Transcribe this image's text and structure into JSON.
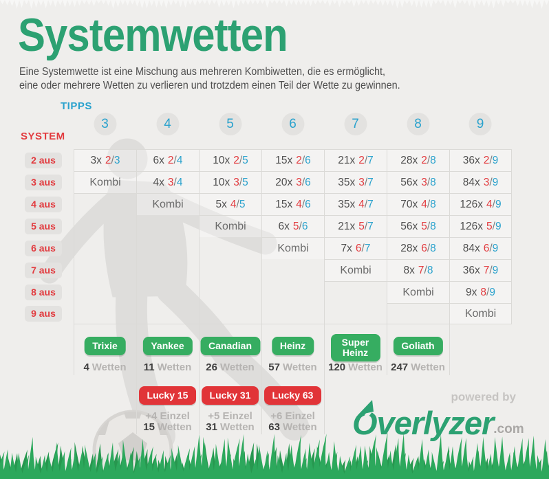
{
  "page": {
    "title": "Systemwetten",
    "subtitle_line1": "Eine Systemwette ist eine Mischung aus mehreren Kombiwetten, die es ermöglicht,",
    "subtitle_line2": "eine oder mehrere Wetten zu verlieren und trotzdem einen Teil der Wette zu gewinnen."
  },
  "chart_data": {
    "type": "table",
    "title": "Systemwetten",
    "columns_label": "TIPPS",
    "rows_label": "SYSTEM",
    "columns": [
      "3",
      "4",
      "5",
      "6",
      "7",
      "8",
      "9"
    ],
    "rows": [
      "2 aus",
      "3 aus",
      "4 aus",
      "5 aus",
      "6 aus",
      "7 aus",
      "8 aus",
      "9 aus"
    ],
    "kombi_label": "Kombi",
    "separator": "/",
    "matrix": [
      [
        {
          "count": "3x",
          "pick": "2",
          "of": "3"
        },
        {
          "count": "6x",
          "pick": "2",
          "of": "4"
        },
        {
          "count": "10x",
          "pick": "2",
          "of": "5"
        },
        {
          "count": "15x",
          "pick": "2",
          "of": "6"
        },
        {
          "count": "21x",
          "pick": "2",
          "of": "7"
        },
        {
          "count": "28x",
          "pick": "2",
          "of": "8"
        },
        {
          "count": "36x",
          "pick": "2",
          "of": "9"
        }
      ],
      [
        {
          "kombi": true
        },
        {
          "count": "4x",
          "pick": "3",
          "of": "4"
        },
        {
          "count": "10x",
          "pick": "3",
          "of": "5"
        },
        {
          "count": "20x",
          "pick": "3",
          "of": "6"
        },
        {
          "count": "35x",
          "pick": "3",
          "of": "7"
        },
        {
          "count": "56x",
          "pick": "3",
          "of": "8"
        },
        {
          "count": "84x",
          "pick": "3",
          "of": "9"
        }
      ],
      [
        null,
        {
          "kombi": true
        },
        {
          "count": "5x",
          "pick": "4",
          "of": "5"
        },
        {
          "count": "15x",
          "pick": "4",
          "of": "6"
        },
        {
          "count": "35x",
          "pick": "4",
          "of": "7"
        },
        {
          "count": "70x",
          "pick": "4",
          "of": "8"
        },
        {
          "count": "126x",
          "pick": "4",
          "of": "9"
        }
      ],
      [
        null,
        null,
        {
          "kombi": true
        },
        {
          "count": "6x",
          "pick": "5",
          "of": "6"
        },
        {
          "count": "21x",
          "pick": "5",
          "of": "7"
        },
        {
          "count": "56x",
          "pick": "5",
          "of": "8"
        },
        {
          "count": "126x",
          "pick": "5",
          "of": "9"
        }
      ],
      [
        null,
        null,
        null,
        {
          "kombi": true
        },
        {
          "count": "7x",
          "pick": "6",
          "of": "7"
        },
        {
          "count": "28x",
          "pick": "6",
          "of": "8"
        },
        {
          "count": "84x",
          "pick": "6",
          "of": "9"
        }
      ],
      [
        null,
        null,
        null,
        null,
        {
          "kombi": true
        },
        {
          "count": "8x",
          "pick": "7",
          "of": "8"
        },
        {
          "count": "36x",
          "pick": "7",
          "of": "9"
        }
      ],
      [
        null,
        null,
        null,
        null,
        null,
        {
          "kombi": true
        },
        {
          "count": "9x",
          "pick": "8",
          "of": "9"
        }
      ],
      [
        null,
        null,
        null,
        null,
        null,
        null,
        {
          "kombi": true
        }
      ]
    ]
  },
  "legend": {
    "wetten_word": "Wetten",
    "systems": [
      {
        "name": "Trixie",
        "wetten": "4",
        "column": "3"
      },
      {
        "name": "Yankee",
        "wetten": "11",
        "column": "4"
      },
      {
        "name": "Canadian",
        "wetten": "26",
        "column": "5"
      },
      {
        "name": "Heinz",
        "wetten": "57",
        "column": "6"
      },
      {
        "name": "Super Heinz",
        "wetten": "120",
        "column": "7"
      },
      {
        "name": "Goliath",
        "wetten": "247",
        "column": "8"
      }
    ],
    "lucky": [
      {
        "name": "Lucky 15",
        "einzel": "+4 Einzel",
        "wetten": "15",
        "column": "4"
      },
      {
        "name": "Lucky 31",
        "einzel": "+5 Einzel",
        "wetten": "31",
        "column": "5"
      },
      {
        "name": "Lucky 63",
        "einzel": "+6 Einzel",
        "wetten": "63",
        "column": "6"
      }
    ]
  },
  "branding": {
    "powered_by": "powered by",
    "logo": "Overlyzer",
    "tld": ".com"
  },
  "colors": {
    "title_green": "#2ca172",
    "button_green": "#36ad61",
    "button_red": "#e13438",
    "accent_red": "#e23b3f",
    "accent_blue": "#2aa2cd",
    "grass_green": "#2ca85c",
    "background": "#efeeec"
  }
}
